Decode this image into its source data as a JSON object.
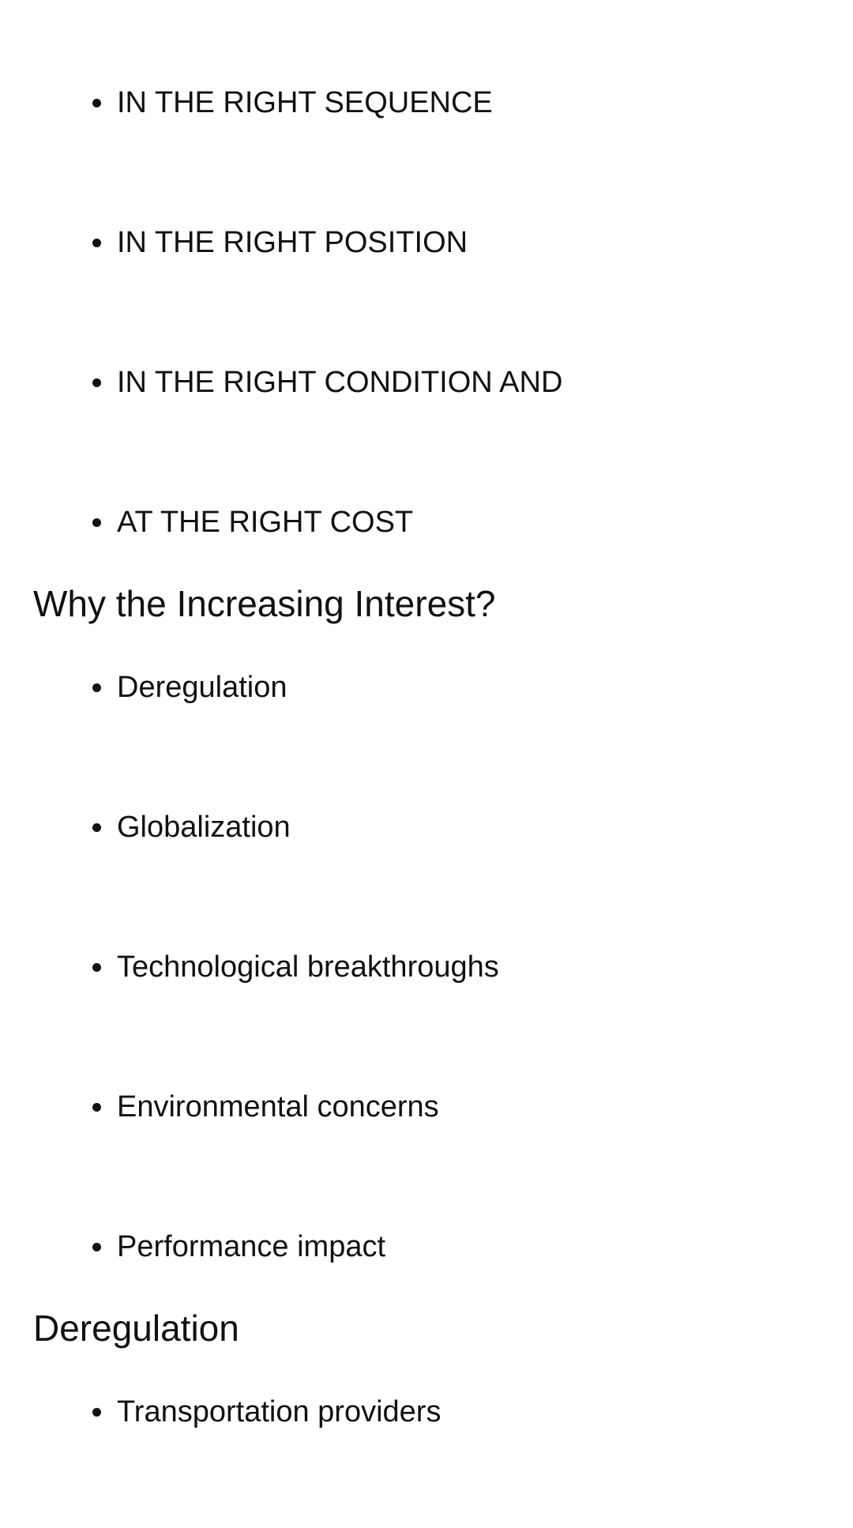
{
  "intro_list": {
    "items": [
      "IN THE RIGHT SEQUENCE",
      "IN THE RIGHT POSITION",
      "IN THE RIGHT CONDITION AND",
      "AT THE RIGHT COST"
    ]
  },
  "interest_section": {
    "heading": "Why the Increasing Interest?",
    "items": [
      "Deregulation",
      "Globalization",
      "Technological breakthroughs",
      "Environmental concerns",
      "Performance impact"
    ]
  },
  "deregulation_section": {
    "heading": "Deregulation",
    "items": [
      "Transportation providers"
    ]
  }
}
